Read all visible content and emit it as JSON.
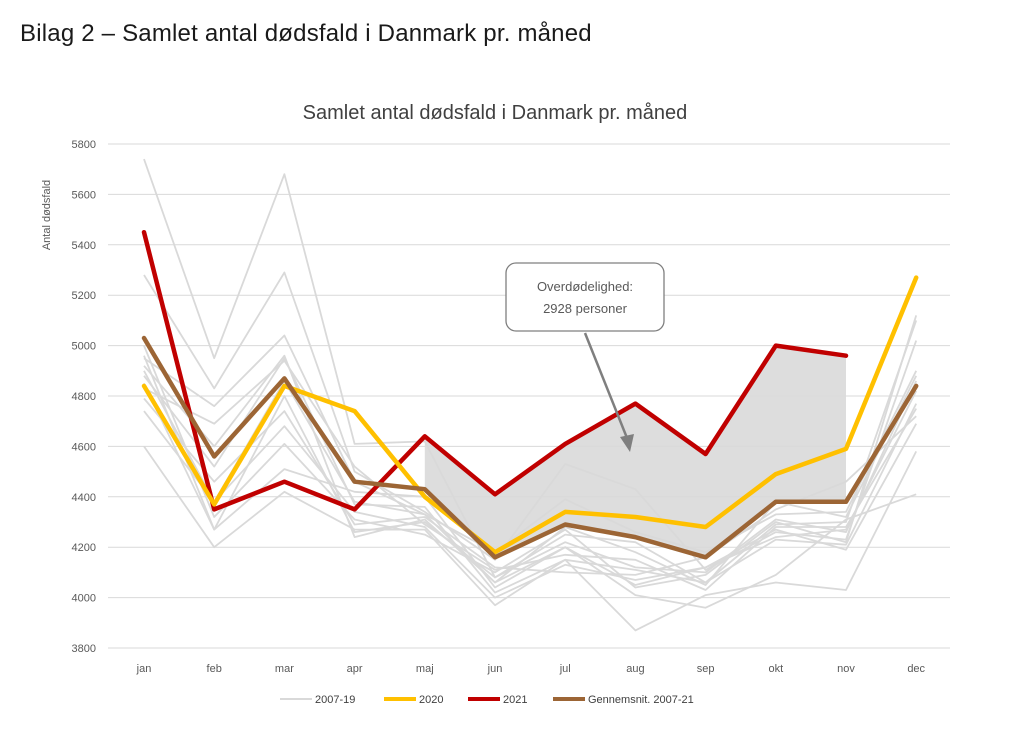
{
  "heading": "Bilag 2 – Samlet antal dødsfald i Danmark pr. måned",
  "colors": {
    "historic": "#d9d9d9",
    "y2020": "#ffc000",
    "y2021": "#c00000",
    "average": "#9c6535",
    "shade": "#d9d9d9",
    "grid": "#d9d9d9",
    "arrow": "#7f7f7f"
  },
  "chart_data": {
    "type": "line",
    "title": "Samlet antal dødsfald i Danmark pr. måned",
    "xlabel": "",
    "ylabel": "Antal dødsfald",
    "ylim": [
      3800,
      5800
    ],
    "yticks": [
      3800,
      4000,
      4200,
      4400,
      4600,
      4800,
      5000,
      5200,
      5400,
      5600,
      5800
    ],
    "grid": true,
    "legend_position": "bottom",
    "categories": [
      "jan",
      "feb",
      "mar",
      "apr",
      "maj",
      "jun",
      "jul",
      "aug",
      "sep",
      "okt",
      "nov",
      "dec"
    ],
    "historic_series": {
      "name": "2007-19",
      "lines": [
        [
          5740,
          4950,
          5680,
          4610,
          4620,
          4080,
          4250,
          4220,
          4060,
          4290,
          4300,
          5100
        ],
        [
          5280,
          4830,
          5290,
          4500,
          4340,
          4150,
          4530,
          4430,
          4110,
          4260,
          4230,
          5020
        ],
        [
          4950,
          4760,
          5040,
          4460,
          4330,
          4180,
          4390,
          4260,
          4180,
          4330,
          4340,
          4900
        ],
        [
          4920,
          4600,
          4960,
          4240,
          4310,
          4060,
          4200,
          4050,
          4120,
          4240,
          4270,
          4820
        ],
        [
          4880,
          4520,
          4950,
          4370,
          4360,
          4020,
          4150,
          4110,
          4060,
          4230,
          4210,
          4770
        ],
        [
          4830,
          4690,
          4940,
          4520,
          4290,
          4110,
          4170,
          4150,
          4030,
          4280,
          4280,
          4750
        ],
        [
          4790,
          4460,
          4740,
          4290,
          4320,
          4120,
          4100,
          4090,
          4160,
          4350,
          4460,
          4720
        ],
        [
          4740,
          4380,
          4680,
          4340,
          4280,
          4000,
          4130,
          4070,
          4120,
          4270,
          4190,
          4690
        ],
        [
          4600,
          4200,
          4420,
          4270,
          4270,
          3970,
          4150,
          3870,
          4010,
          4060,
          4030,
          4580
        ],
        [
          4960,
          4270,
          4510,
          4420,
          4400,
          4040,
          4200,
          4010,
          3960,
          4090,
          4310,
          4410
        ],
        [
          5000,
          4320,
          4610,
          4310,
          4250,
          4100,
          4270,
          4040,
          4090,
          4300,
          4220,
          5120
        ],
        [
          4850,
          4270,
          4800,
          4260,
          4300,
          4080,
          4220,
          4120,
          4100,
          4310,
          4260,
          4860
        ],
        [
          4900,
          4380,
          4860,
          4380,
          4330,
          4060,
          4280,
          4180,
          4050,
          4380,
          4320,
          4880
        ]
      ]
    },
    "series": [
      {
        "name": "2020",
        "values": [
          4840,
          4370,
          4840,
          4740,
          4400,
          4180,
          4340,
          4320,
          4280,
          4490,
          4590,
          5270
        ]
      },
      {
        "name": "2021",
        "values": [
          5450,
          4350,
          4460,
          4350,
          4640,
          4410,
          4610,
          4770,
          4570,
          5000,
          4960,
          null
        ]
      },
      {
        "name": "Gennemsnit. 2007-21",
        "values": [
          5030,
          4560,
          4870,
          4460,
          4430,
          4160,
          4290,
          4240,
          4160,
          4380,
          4380,
          4840
        ]
      }
    ],
    "excess_mortality_region": {
      "from": "maj",
      "to": "nov",
      "upper": "2021",
      "lower": "Gennemsnit. 2007-21"
    },
    "annotation": {
      "line1": "Overdødelighed:",
      "line2": "2928 personer"
    }
  }
}
